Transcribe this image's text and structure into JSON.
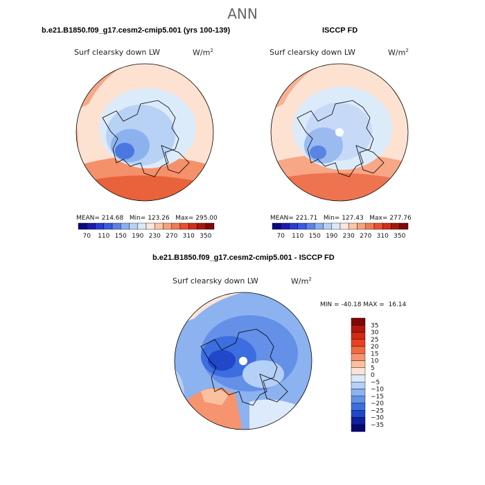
{
  "page": {
    "title": "ANN"
  },
  "top_left": {
    "case_title": "b.e21.B1850.f09_g17.cesm2-cmip5.001 (yrs 100-139)",
    "variable": "Surf clearsky down LW",
    "units": "W/m",
    "units_sup": "2",
    "stats": "MEAN= 214.68   Min= 123.26   Max= 295.00"
  },
  "top_right": {
    "case_title": "ISCCP FD",
    "variable": "Surf clearsky down LW",
    "units": "W/m",
    "units_sup": "2",
    "stats": "MEAN= 221.71   Min= 127.43   Max= 277.76"
  },
  "bottom": {
    "case_title": "b.e21.B1850.f09_g17.cesm2-cmip5.001 - ISCCP FD",
    "variable": "Surf clearsky down LW",
    "units": "W/m",
    "units_sup": "2",
    "stats": "MIN = -40.18 MAX =  16.14"
  },
  "colorbar_abs": {
    "tick_labels": [
      "70",
      "110",
      "150",
      "190",
      "230",
      "270",
      "310",
      "350"
    ],
    "colors": [
      "#0a0a80",
      "#1a1ab0",
      "#2a3ad0",
      "#3a5ae0",
      "#5a80ea",
      "#8aaef0",
      "#b8d0f6",
      "#dce8fa",
      "#fde6da",
      "#fcc4a8",
      "#f8a07c",
      "#f07a56",
      "#e85030",
      "#d0301a",
      "#a81810",
      "#800808"
    ]
  },
  "colorbar_diff": {
    "tick_labels": [
      "35",
      "30",
      "25",
      "20",
      "15",
      "10",
      "5",
      "0",
      "−5",
      "−10",
      "−15",
      "−20",
      "−25",
      "−30",
      "−35"
    ],
    "colors": [
      "#800808",
      "#b01810",
      "#d22a14",
      "#e84020",
      "#f06a40",
      "#f69470",
      "#fbc0a0",
      "#fde4d6",
      "#dceafb",
      "#b4d0f6",
      "#8cb2f0",
      "#6490e8",
      "#3c6ee0",
      "#2048c8",
      "#1020a0",
      "#080870"
    ]
  }
}
